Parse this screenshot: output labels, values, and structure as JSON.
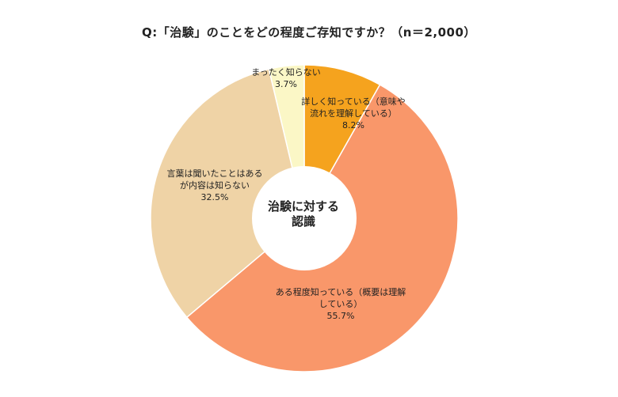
{
  "chart_data": {
    "type": "pie",
    "title": "Q:「治験」のことをどの程度ご存知ですか？（n＝2,000）",
    "center_label": [
      "治験に対する",
      "認識"
    ],
    "slices": [
      {
        "label": [
          "詳しく知っている（意味や",
          "流れを理解している）"
        ],
        "value_label": "8.2%",
        "value": 8.2,
        "color": "#f5a31e"
      },
      {
        "label": [
          "ある程度知っている（概要は理解",
          "している）"
        ],
        "value_label": "55.7%",
        "value": 55.7,
        "color": "#f9976a"
      },
      {
        "label": [
          "言葉は聞いたことはある",
          "が内容は知らない"
        ],
        "value_label": "32.5%",
        "value": 32.5,
        "color": "#efd3a6"
      },
      {
        "label": [
          "まったく知らない"
        ],
        "value_label": "3.7%",
        "value": 3.7,
        "color": "#fbf7c6"
      }
    ]
  }
}
